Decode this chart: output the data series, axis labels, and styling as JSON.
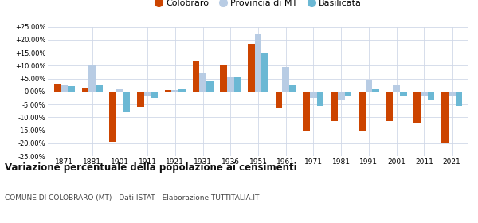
{
  "years": [
    1871,
    1881,
    1901,
    1911,
    1921,
    1931,
    1936,
    1951,
    1961,
    1971,
    1981,
    1991,
    2001,
    2011,
    2021
  ],
  "colobraro": [
    3.0,
    1.5,
    -19.5,
    -6.0,
    0.5,
    11.5,
    10.0,
    18.5,
    -6.5,
    -15.5,
    -11.5,
    -15.0,
    -11.5,
    -12.5,
    -20.0
  ],
  "provincia_mt": [
    2.5,
    10.0,
    1.0,
    -1.5,
    0.5,
    7.0,
    5.5,
    22.0,
    9.5,
    -2.5,
    -3.0,
    4.5,
    2.5,
    -2.0,
    -1.5
  ],
  "basilicata": [
    2.0,
    2.5,
    -8.0,
    -2.5,
    1.0,
    4.0,
    5.5,
    15.0,
    2.5,
    -5.5,
    -1.5,
    1.0,
    -2.0,
    -3.0,
    -5.5
  ],
  "color_colobraro": "#cc4400",
  "color_provincia": "#b8cce4",
  "color_basilicata": "#6bb8d4",
  "title": "Variazione percentuale della popolazione ai censimenti",
  "subtitle": "COMUNE DI COLOBRARO (MT) - Dati ISTAT - Elaborazione TUTTITALIA.IT",
  "ylim": [
    -25,
    25
  ],
  "yticks": [
    -25,
    -20,
    -15,
    -10,
    -5,
    0,
    5,
    10,
    15,
    20,
    25
  ],
  "ytick_labels": [
    "-25.00%",
    "-20.00%",
    "-15.00%",
    "-10.00%",
    "-5.00%",
    "0.00%",
    "+5.00%",
    "+10.00%",
    "+15.00%",
    "+20.00%",
    "+25.00%"
  ],
  "background_color": "#ffffff",
  "grid_color": "#d0d8e8",
  "bar_width": 0.25
}
